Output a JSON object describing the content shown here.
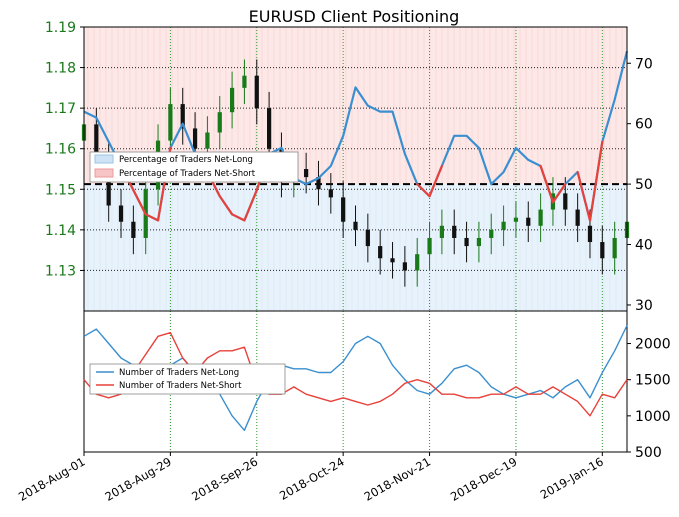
{
  "title": "EURUSD Client Positioning",
  "colors": {
    "long": "#3a8fd0",
    "short": "#e8413a",
    "long_fill": "#e8f2fb",
    "short_fill": "#fde8e8",
    "price_axis": "#1a7a1a",
    "grid": "#2e9a2e"
  },
  "chart_data": [
    {
      "type": "line",
      "title": "EURUSD Client Positioning",
      "x_ticks": [
        "2018-Aug-01",
        "2018-Aug-29",
        "2018-Sep-26",
        "2018-Oct-24",
        "2018-Nov-21",
        "2018-Dec-19",
        "2019-Jan-16"
      ],
      "price_axis": {
        "side": "left",
        "ylim": [
          1.12,
          1.19
        ],
        "ticks": [
          "1.19",
          "1.18",
          "1.17",
          "1.16",
          "1.15",
          "1.14",
          "1.13"
        ]
      },
      "percent_axis": {
        "side": "right",
        "ylim": [
          29,
          76
        ],
        "ticks": [
          "70",
          "60",
          "50",
          "40",
          "30"
        ]
      },
      "threshold": 50,
      "legend": {
        "position": "upper-left",
        "entries": [
          "Percentage of Traders Net-Long",
          "Percentage of Traders Net-Short"
        ]
      },
      "x_dates": [
        "2018-08-01",
        "2018-08-05",
        "2018-08-09",
        "2018-08-13",
        "2018-08-17",
        "2018-08-21",
        "2018-08-25",
        "2018-08-29",
        "2018-09-02",
        "2018-09-06",
        "2018-09-10",
        "2018-09-14",
        "2018-09-18",
        "2018-09-22",
        "2018-09-26",
        "2018-09-30",
        "2018-10-04",
        "2018-10-08",
        "2018-10-12",
        "2018-10-16",
        "2018-10-20",
        "2018-10-24",
        "2018-10-28",
        "2018-11-01",
        "2018-11-05",
        "2018-11-09",
        "2018-11-13",
        "2018-11-17",
        "2018-11-21",
        "2018-11-25",
        "2018-11-29",
        "2018-12-03",
        "2018-12-07",
        "2018-12-11",
        "2018-12-15",
        "2018-12-19",
        "2018-12-23",
        "2018-12-27",
        "2018-12-31",
        "2019-01-04",
        "2019-01-08",
        "2019-01-12",
        "2019-01-16",
        "2019-01-20",
        "2019-01-24"
      ],
      "series": [
        {
          "name": "Percentage of Traders Net-Long",
          "values": [
            62,
            61,
            57,
            53,
            49,
            45,
            44,
            56,
            60,
            55,
            52,
            48,
            45,
            44,
            49,
            55,
            56,
            51,
            50,
            51,
            53,
            58,
            66,
            63,
            62,
            62,
            55,
            50,
            48,
            53,
            58,
            58,
            56,
            50,
            52,
            56,
            54,
            53,
            47,
            50,
            52,
            44,
            57,
            64,
            72
          ]
        },
        {
          "name": "EURUSD price",
          "style": "candlestick",
          "close": [
            1.166,
            1.158,
            1.146,
            1.142,
            1.138,
            1.15,
            1.162,
            1.171,
            1.165,
            1.16,
            1.164,
            1.169,
            1.175,
            1.178,
            1.17,
            1.16,
            1.152,
            1.155,
            1.153,
            1.15,
            1.148,
            1.142,
            1.14,
            1.136,
            1.133,
            1.132,
            1.13,
            1.134,
            1.138,
            1.141,
            1.138,
            1.136,
            1.138,
            1.14,
            1.142,
            1.143,
            1.141,
            1.145,
            1.149,
            1.145,
            1.141,
            1.137,
            1.133,
            1.138,
            1.142
          ]
        }
      ]
    },
    {
      "type": "line",
      "ylim": [
        500,
        2450
      ],
      "right_axis_ticks": [
        "2000",
        "1500",
        "1000",
        "500"
      ],
      "legend": {
        "position": "center-left",
        "entries": [
          "Number of Traders Net-Long",
          "Number of Traders Net-Short"
        ]
      },
      "series": [
        {
          "name": "Number of Traders Net-Long",
          "values": [
            2100,
            2200,
            2000,
            1800,
            1700,
            1600,
            1650,
            1700,
            1800,
            1600,
            1500,
            1300,
            1000,
            800,
            1200,
            1500,
            1700,
            1650,
            1650,
            1600,
            1600,
            1750,
            2000,
            2100,
            2000,
            1700,
            1500,
            1350,
            1300,
            1450,
            1650,
            1700,
            1600,
            1400,
            1300,
            1250,
            1300,
            1350,
            1250,
            1400,
            1500,
            1250,
            1600,
            1900,
            2250
          ]
        },
        {
          "name": "Number of Traders Net-Short",
          "values": [
            1500,
            1300,
            1250,
            1300,
            1600,
            1850,
            2100,
            2150,
            1800,
            1600,
            1800,
            1900,
            1900,
            1950,
            1450,
            1300,
            1300,
            1400,
            1300,
            1250,
            1200,
            1250,
            1200,
            1150,
            1200,
            1300,
            1450,
            1500,
            1450,
            1300,
            1300,
            1250,
            1250,
            1300,
            1300,
            1400,
            1300,
            1300,
            1400,
            1300,
            1200,
            1000,
            1300,
            1250,
            1500
          ]
        }
      ]
    }
  ]
}
